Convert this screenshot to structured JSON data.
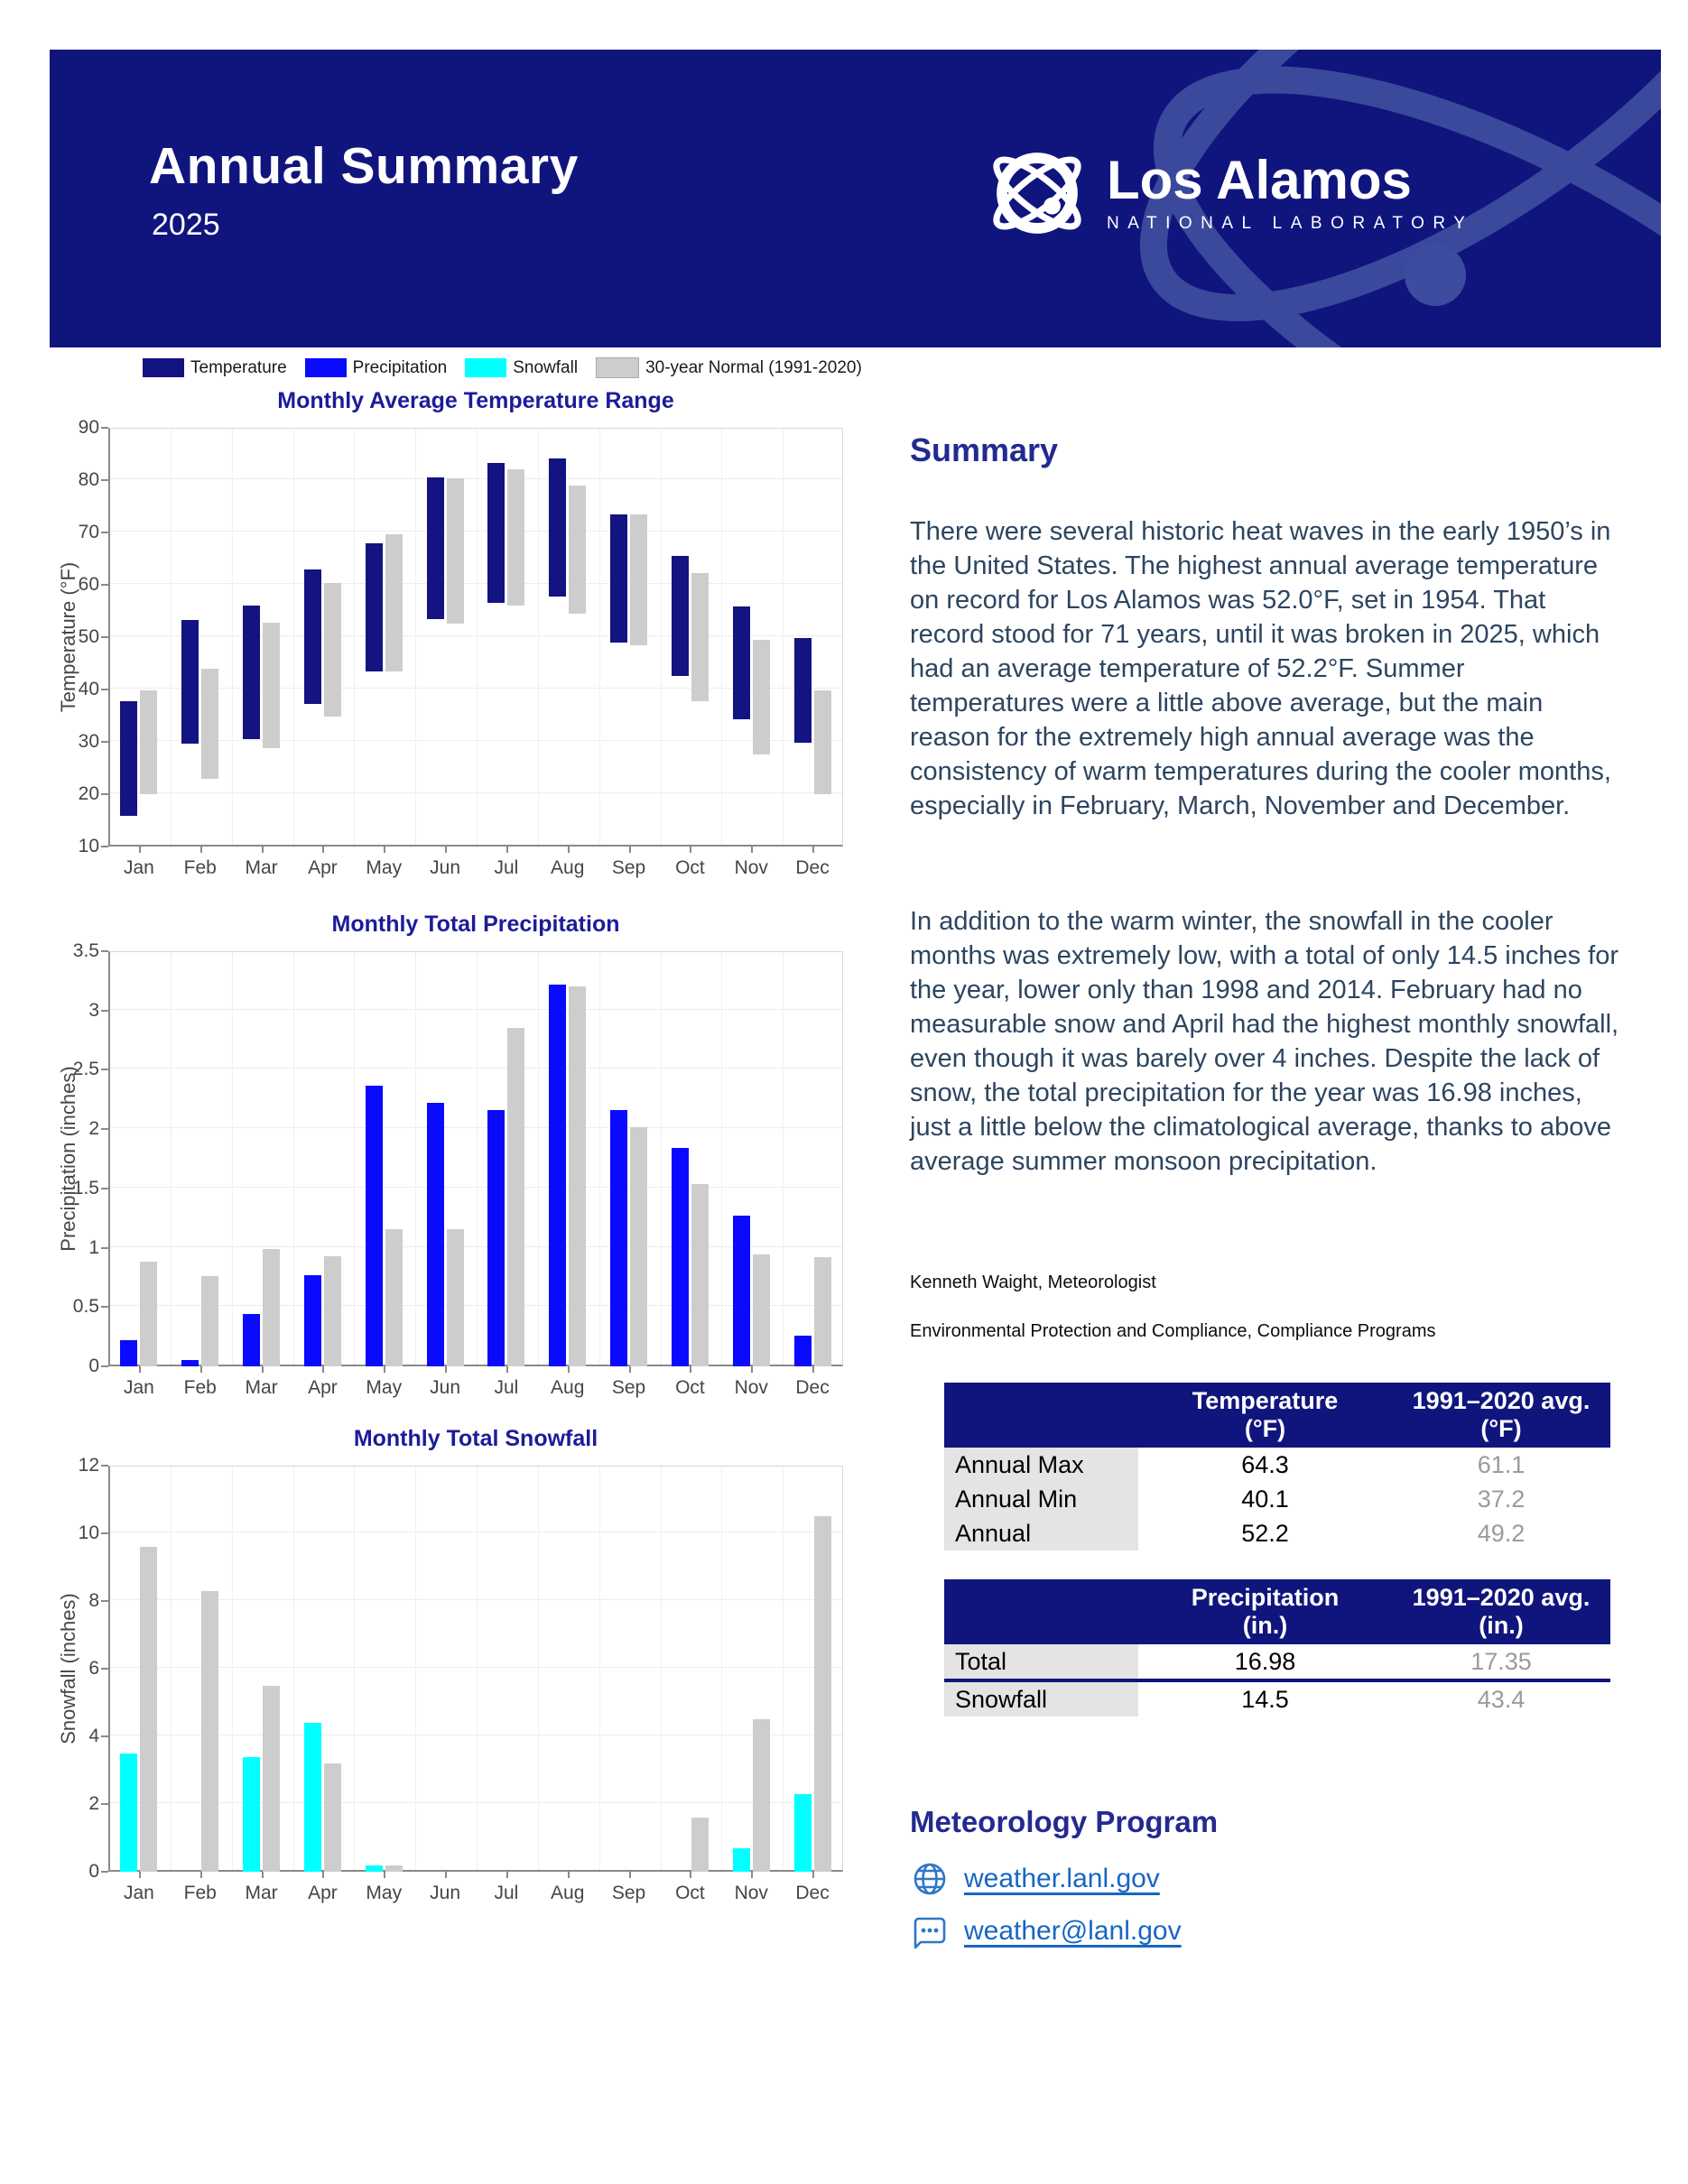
{
  "header": {
    "title": "Annual Summary",
    "year": "2025",
    "logo_name": "Los Alamos",
    "logo_sub": "NATIONAL LABORATORY",
    "banner_color": "#10157d"
  },
  "legend": {
    "items": [
      {
        "label": "Temperature",
        "color": "#131382"
      },
      {
        "label": "Precipitation",
        "color": "#0a0aff"
      },
      {
        "label": "Snowfall",
        "color": "#00ffff"
      },
      {
        "label": "30-year Normal (1991-2020)",
        "color": "#cdcdcd",
        "border": "#a8a8a8"
      }
    ]
  },
  "chart_data": [
    {
      "type": "range-bar",
      "title": "Monthly Average Temperature Range",
      "ylabel": "Temperature (°F)",
      "ylim": [
        10,
        90
      ],
      "yticks": [
        10,
        20,
        30,
        40,
        50,
        60,
        70,
        80,
        90
      ],
      "grid": true,
      "categories": [
        "Jan",
        "Feb",
        "Mar",
        "Apr",
        "May",
        "Jun",
        "Jul",
        "Aug",
        "Sep",
        "Oct",
        "Nov",
        "Dec"
      ],
      "series": [
        {
          "name": "Temperature",
          "color": "#131382",
          "ranges": [
            [
              15.8,
              37.8
            ],
            [
              29.7,
              53.3
            ],
            [
              30.5,
              56.1
            ],
            [
              37.2,
              63.0
            ],
            [
              43.5,
              67.9
            ],
            [
              53.5,
              80.5
            ],
            [
              56.6,
              83.3
            ],
            [
              57.8,
              84.1
            ],
            [
              49.0,
              73.4
            ],
            [
              42.5,
              65.5
            ],
            [
              34.3,
              55.9
            ],
            [
              29.9,
              49.9
            ]
          ]
        },
        {
          "name": "30-year Normal (1991-2020)",
          "color": "#cdcdcd",
          "ranges": [
            [
              20.0,
              39.8
            ],
            [
              23.0,
              44.0
            ],
            [
              28.8,
              52.7
            ],
            [
              34.8,
              60.4
            ],
            [
              43.5,
              69.6
            ],
            [
              52.6,
              80.4
            ],
            [
              56.0,
              82.0
            ],
            [
              54.4,
              79.0
            ],
            [
              48.5,
              73.5
            ],
            [
              37.8,
              62.2
            ],
            [
              27.5,
              49.5
            ],
            [
              20.0,
              39.8
            ]
          ]
        }
      ]
    },
    {
      "type": "bar",
      "title": "Monthly Total Precipitation",
      "ylabel": "Precipitation (inches)",
      "ylim": [
        0,
        3.5
      ],
      "yticks": [
        0,
        0.5,
        1,
        1.5,
        2,
        2.5,
        3,
        3.5
      ],
      "grid": true,
      "categories": [
        "Jan",
        "Feb",
        "Mar",
        "Apr",
        "May",
        "Jun",
        "Jul",
        "Aug",
        "Sep",
        "Oct",
        "Nov",
        "Dec"
      ],
      "series": [
        {
          "name": "Precipitation",
          "color": "#0a0aff",
          "values": [
            0.22,
            0.05,
            0.44,
            0.77,
            2.37,
            2.22,
            2.16,
            3.22,
            2.16,
            1.84,
            1.27,
            0.26
          ]
        },
        {
          "name": "30-year Normal (1991-2020)",
          "color": "#cdcdcd",
          "values": [
            0.88,
            0.76,
            0.99,
            0.93,
            1.16,
            1.16,
            2.85,
            3.2,
            2.02,
            1.54,
            0.94,
            0.92
          ]
        }
      ]
    },
    {
      "type": "bar",
      "title": "Monthly Total Snowfall",
      "ylabel": "Snowfall (inches)",
      "ylim": [
        0,
        12
      ],
      "yticks": [
        0,
        2,
        4,
        6,
        8,
        10,
        12
      ],
      "grid": true,
      "categories": [
        "Jan",
        "Feb",
        "Mar",
        "Apr",
        "May",
        "Jun",
        "Jul",
        "Aug",
        "Sep",
        "Oct",
        "Nov",
        "Dec"
      ],
      "series": [
        {
          "name": "Snowfall",
          "color": "#00ffff",
          "values": [
            3.5,
            0,
            3.4,
            4.4,
            0.2,
            0,
            0,
            0,
            0,
            0,
            0.7,
            2.3
          ]
        },
        {
          "name": "30-year Normal (1991-2020)",
          "color": "#cdcdcd",
          "values": [
            9.6,
            8.3,
            5.5,
            3.2,
            0.2,
            0,
            0,
            0,
            0,
            1.6,
            4.5,
            10.5
          ]
        }
      ]
    }
  ],
  "summary": {
    "heading": "Summary",
    "para1": "There were several historic heat waves in the early 1950’s in the United States. The highest annual average temperature on record for Los Alamos was 52.0°F, set in 1954. That record stood for 71 years, until it was broken in 2025, which had an average temperature of 52.2°F. Summer temperatures were a little above average, but the main reason for the extremely high annual average was the consistency of warm temperatures during the cooler months, especially in February, March, November and December.",
    "para2": "In addition to the warm winter, the snowfall in the cooler months was extremely low, with a total of only 14.5 inches for the year, lower only than 1998 and 2014. February had no measurable snow and April had the highest monthly snowfall, even though it was barely over 4 inches. Despite the lack of snow, the total precipitation for the year was 16.98 inches, just a little below the climatological average, thanks to above average summer monsoon precipitation.",
    "byline1": "Kenneth Waight, Meteorologist",
    "byline2": "Environmental Protection and Compliance, Compliance Programs"
  },
  "tables": {
    "temperature": {
      "col2_line1": "Temperature",
      "col2_line2": "(°F)",
      "col3_line1": "1991–2020 avg.",
      "col3_line2": "(°F)",
      "rows": [
        {
          "label": "Annual Max",
          "value": "64.3",
          "avg": "61.1"
        },
        {
          "label": "Annual Min",
          "value": "40.1",
          "avg": "37.2"
        },
        {
          "label": "Annual",
          "value": "52.2",
          "avg": "49.2"
        }
      ]
    },
    "precipitation": {
      "col2_line1": "Precipitation",
      "col2_line2": "(in.)",
      "col3_line1": "1991–2020 avg.",
      "col3_line2": "(in.)",
      "rows": [
        {
          "label": "Total",
          "value": "16.98",
          "avg": "17.35"
        },
        {
          "label": "Snowfall",
          "value": "14.5",
          "avg": "43.4"
        }
      ]
    }
  },
  "footer": {
    "heading": "Meteorology Program",
    "website": "weather.lanl.gov",
    "email": "weather@lanl.gov"
  }
}
